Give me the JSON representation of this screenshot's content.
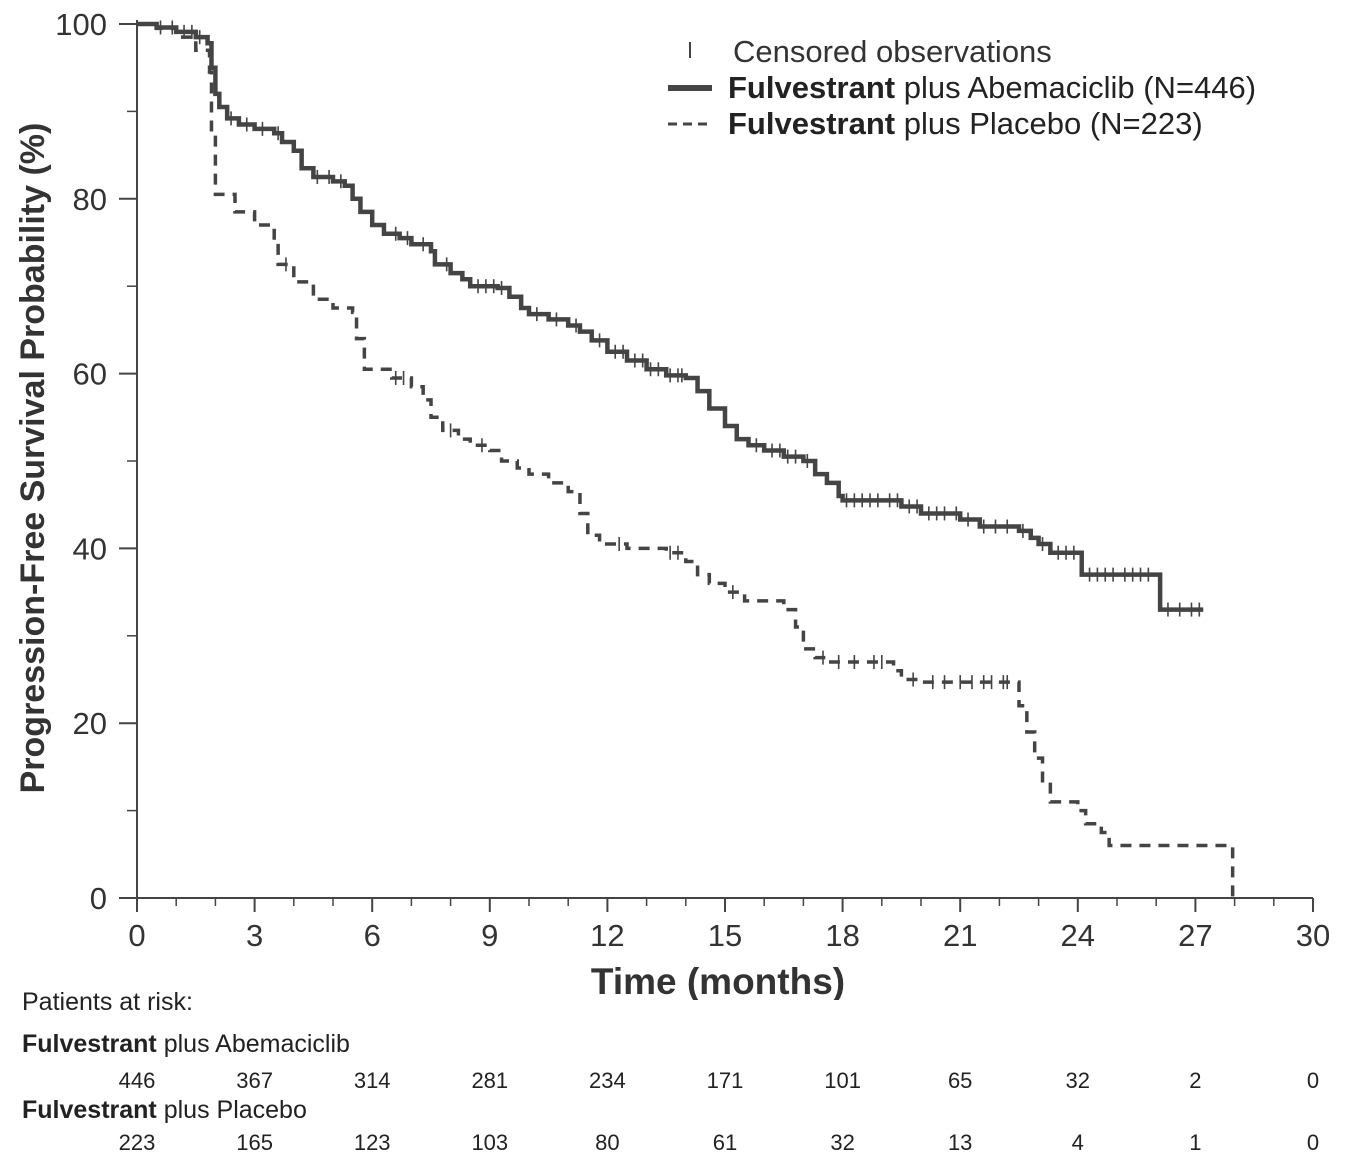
{
  "chart_data": {
    "type": "line",
    "title": "",
    "xlabel": "Time (months)",
    "ylabel": "Progression-Free Survival Probability (%)",
    "xlim": [
      0,
      30
    ],
    "ylim": [
      0,
      100
    ],
    "x_ticks": [
      0,
      3,
      6,
      9,
      12,
      15,
      18,
      21,
      24,
      27,
      30
    ],
    "y_ticks": [
      0,
      20,
      40,
      60,
      80,
      100
    ],
    "legend": {
      "placement": "top-right",
      "censored_label": "Censored observations",
      "entries": [
        {
          "bold": "Fulvestrant",
          "rest": " plus Abemaciclib (N=446)"
        },
        {
          "bold": "Fulvestrant",
          "rest": " plus Placebo (N=223)"
        }
      ]
    },
    "series": [
      {
        "name": "Fulvestrant plus Abemaciclib (N=446)",
        "style": "solid",
        "color": "#444444",
        "points": [
          [
            0,
            100
          ],
          [
            0.5,
            99.6
          ],
          [
            1.0,
            99.1
          ],
          [
            1.5,
            98.5
          ],
          [
            1.8,
            97.8
          ],
          [
            1.9,
            95
          ],
          [
            2.0,
            92
          ],
          [
            2.1,
            90.5
          ],
          [
            2.3,
            89.2
          ],
          [
            2.6,
            88.5
          ],
          [
            3.0,
            88.0
          ],
          [
            3.5,
            87.5
          ],
          [
            3.7,
            86.5
          ],
          [
            4.0,
            85.5
          ],
          [
            4.2,
            83.5
          ],
          [
            4.5,
            82.5
          ],
          [
            5.0,
            82.0
          ],
          [
            5.3,
            81.5
          ],
          [
            5.5,
            80.0
          ],
          [
            5.7,
            78.5
          ],
          [
            6.0,
            77.0
          ],
          [
            6.3,
            76.0
          ],
          [
            6.7,
            75.5
          ],
          [
            7.0,
            74.8
          ],
          [
            7.5,
            74.0
          ],
          [
            7.6,
            72.5
          ],
          [
            8.0,
            71.5
          ],
          [
            8.3,
            70.8
          ],
          [
            8.5,
            70.0
          ],
          [
            9.2,
            69.8
          ],
          [
            9.5,
            68.8
          ],
          [
            9.8,
            67.5
          ],
          [
            10.0,
            66.8
          ],
          [
            10.5,
            66.2
          ],
          [
            11.0,
            65.5
          ],
          [
            11.3,
            64.8
          ],
          [
            11.6,
            63.8
          ],
          [
            12.0,
            62.5
          ],
          [
            12.5,
            61.5
          ],
          [
            13.0,
            60.5
          ],
          [
            13.5,
            59.8
          ],
          [
            14.0,
            59.5
          ],
          [
            14.3,
            58.0
          ],
          [
            14.6,
            56.0
          ],
          [
            15.0,
            54.0
          ],
          [
            15.3,
            52.5
          ],
          [
            15.6,
            51.8
          ],
          [
            16.0,
            51.2
          ],
          [
            16.5,
            50.5
          ],
          [
            17.0,
            50.0
          ],
          [
            17.3,
            48.5
          ],
          [
            17.6,
            47.5
          ],
          [
            17.9,
            46.0
          ],
          [
            18.0,
            45.5
          ],
          [
            19.0,
            45.5
          ],
          [
            19.5,
            44.8
          ],
          [
            20.0,
            44.0
          ],
          [
            21.0,
            43.3
          ],
          [
            21.5,
            42.5
          ],
          [
            22.5,
            42.0
          ],
          [
            22.8,
            41.2
          ],
          [
            23.0,
            40.5
          ],
          [
            23.3,
            39.5
          ],
          [
            24.0,
            39.5
          ],
          [
            24.1,
            37.0
          ],
          [
            25.0,
            37.0
          ],
          [
            26.0,
            37.0
          ],
          [
            26.1,
            33.0
          ],
          [
            27.2,
            33.0
          ]
        ],
        "censored_x": [
          0.6,
          0.9,
          1.2,
          1.4,
          1.6,
          2.4,
          2.8,
          3.2,
          3.6,
          4.6,
          4.9,
          5.2,
          6.6,
          6.9,
          7.3,
          7.9,
          8.7,
          8.9,
          9.1,
          9.3,
          10.2,
          10.7,
          11.2,
          11.8,
          12.2,
          12.4,
          12.7,
          12.9,
          13.1,
          13.3,
          13.6,
          13.8,
          13.9,
          15.8,
          16.2,
          16.4,
          16.6,
          16.8,
          17.1,
          18.1,
          18.3,
          18.5,
          18.7,
          18.9,
          19.2,
          19.4,
          19.7,
          19.9,
          20.2,
          20.4,
          20.6,
          20.9,
          21.2,
          21.6,
          21.9,
          22.2,
          22.6,
          23.1,
          23.5,
          23.7,
          23.9,
          24.3,
          24.5,
          24.7,
          24.9,
          25.2,
          25.4,
          25.6,
          25.8,
          26.3,
          26.6,
          26.9,
          27.1
        ]
      },
      {
        "name": "Fulvestrant plus Placebo (N=223)",
        "style": "dashed",
        "color": "#444444",
        "points": [
          [
            0,
            100
          ],
          [
            0.5,
            99.5
          ],
          [
            1.0,
            98.5
          ],
          [
            1.5,
            97.0
          ],
          [
            1.85,
            94.5
          ],
          [
            1.9,
            87.5
          ],
          [
            2.0,
            80.5
          ],
          [
            2.5,
            78.5
          ],
          [
            3.0,
            77.0
          ],
          [
            3.5,
            75.0
          ],
          [
            3.6,
            72.5
          ],
          [
            4.0,
            70.5
          ],
          [
            4.5,
            68.5
          ],
          [
            5.0,
            67.5
          ],
          [
            5.5,
            67.0
          ],
          [
            5.6,
            64.0
          ],
          [
            5.8,
            60.5
          ],
          [
            6.5,
            59.5
          ],
          [
            7.0,
            58.5
          ],
          [
            7.3,
            57.0
          ],
          [
            7.5,
            55.0
          ],
          [
            7.8,
            53.5
          ],
          [
            8.2,
            52.5
          ],
          [
            8.5,
            51.8
          ],
          [
            9.0,
            51.2
          ],
          [
            9.3,
            50.0
          ],
          [
            9.7,
            49.2
          ],
          [
            10.0,
            48.5
          ],
          [
            10.5,
            47.5
          ],
          [
            11.0,
            46.5
          ],
          [
            11.3,
            44.0
          ],
          [
            11.5,
            41.5
          ],
          [
            11.8,
            40.5
          ],
          [
            12.5,
            40.0
          ],
          [
            13.5,
            39.5
          ],
          [
            14.0,
            38.5
          ],
          [
            14.3,
            37.0
          ],
          [
            14.6,
            36.0
          ],
          [
            15.0,
            35.0
          ],
          [
            15.5,
            34.0
          ],
          [
            16.5,
            33.0
          ],
          [
            16.8,
            31.0
          ],
          [
            17.0,
            28.5
          ],
          [
            17.3,
            27.5
          ],
          [
            17.6,
            27.0
          ],
          [
            18.5,
            27.0
          ],
          [
            19.3,
            26.0
          ],
          [
            19.5,
            25.0
          ],
          [
            20.0,
            24.7
          ],
          [
            22.3,
            24.7
          ],
          [
            22.5,
            22.0
          ],
          [
            22.7,
            19.0
          ],
          [
            22.9,
            16.0
          ],
          [
            23.1,
            13.0
          ],
          [
            23.3,
            11.0
          ],
          [
            24.0,
            10.0
          ],
          [
            24.2,
            8.5
          ],
          [
            24.6,
            7.5
          ],
          [
            24.8,
            6.0
          ],
          [
            27.9,
            6.0
          ],
          [
            27.95,
            0
          ]
        ],
        "censored_x": [
          3.8,
          6.6,
          6.8,
          8.0,
          8.8,
          12.3,
          13.6,
          13.8,
          15.2,
          17.5,
          17.9,
          18.3,
          18.8,
          19.0,
          19.8,
          20.3,
          20.6,
          21.0,
          21.3,
          21.6,
          21.8,
          22.1,
          22.2
        ]
      }
    ],
    "risk_table": {
      "header": "Patients at risk:",
      "times": [
        0,
        3,
        6,
        9,
        12,
        15,
        18,
        21,
        24,
        27,
        30
      ],
      "groups": [
        {
          "bold": "Fulvestrant",
          "rest": " plus Abemaciclib",
          "counts": [
            446,
            367,
            314,
            281,
            234,
            171,
            101,
            65,
            32,
            2,
            0
          ]
        },
        {
          "bold": "Fulvestrant",
          "rest": " plus Placebo",
          "counts": [
            223,
            165,
            123,
            103,
            80,
            61,
            32,
            13,
            4,
            1,
            0
          ]
        }
      ]
    }
  }
}
